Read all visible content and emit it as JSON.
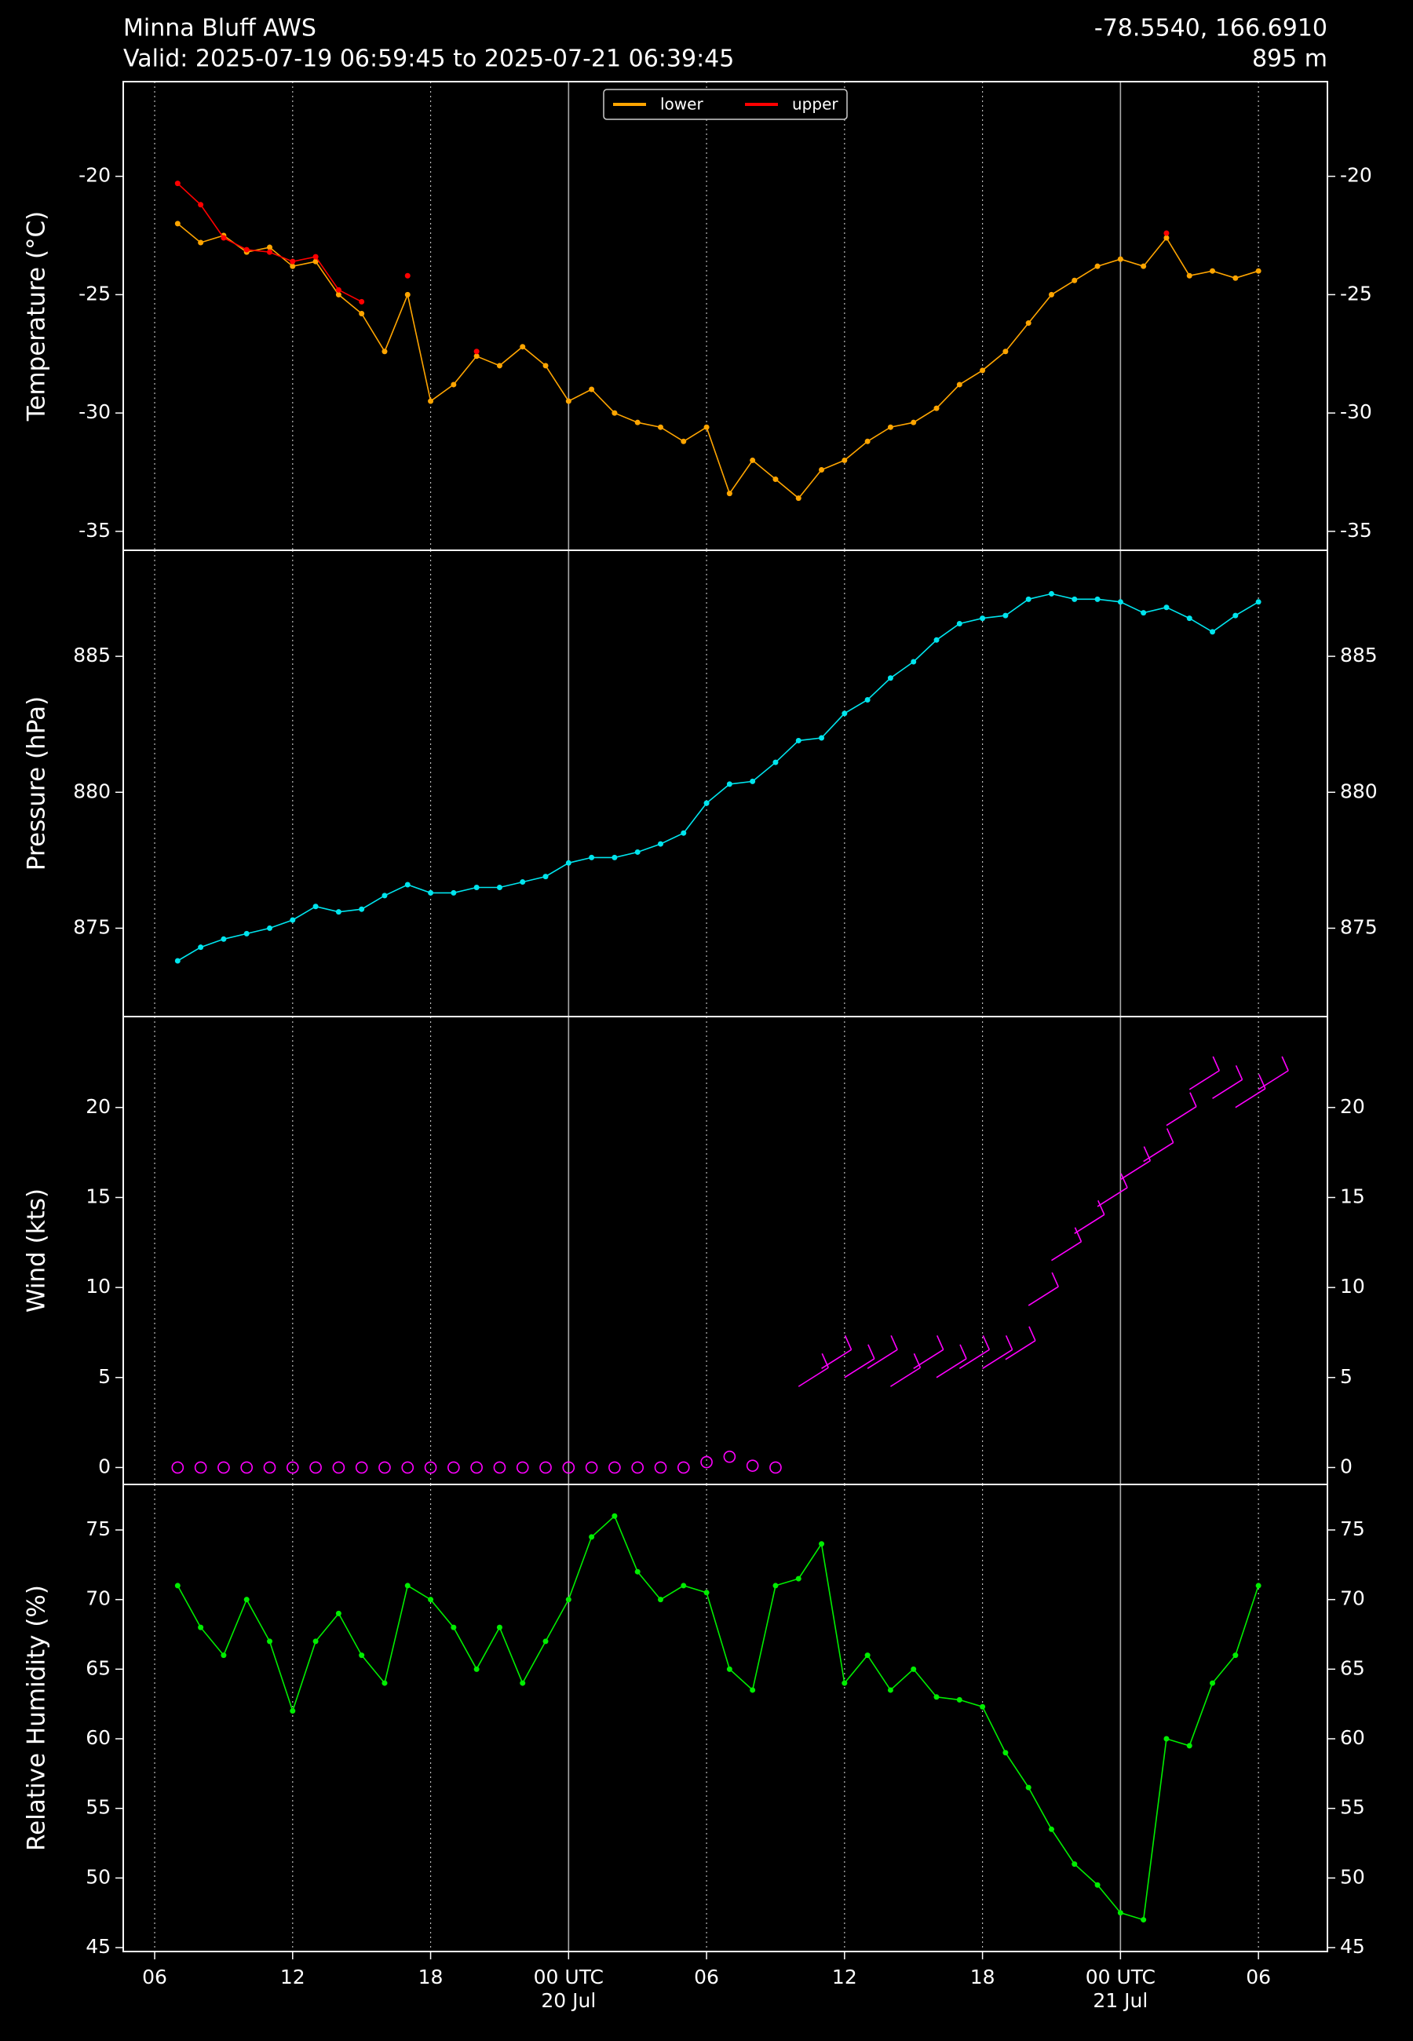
{
  "chart_data": {
    "type": "multi-panel",
    "title": "Minna Bluff AWS",
    "subtitle": "Valid: 2025-07-19 06:59:45 to 2025-07-21 06:39:45",
    "location": "-78.5540, 166.6910",
    "elevation": "895 m",
    "grid": true,
    "x": [
      "2025-07-19T07:00",
      "2025-07-19T08:00",
      "2025-07-19T09:00",
      "2025-07-19T10:00",
      "2025-07-19T11:00",
      "2025-07-19T12:00",
      "2025-07-19T13:00",
      "2025-07-19T14:00",
      "2025-07-19T15:00",
      "2025-07-19T16:00",
      "2025-07-19T17:00",
      "2025-07-19T18:00",
      "2025-07-19T19:00",
      "2025-07-19T20:00",
      "2025-07-19T21:00",
      "2025-07-19T22:00",
      "2025-07-19T23:00",
      "2025-07-20T00:00",
      "2025-07-20T01:00",
      "2025-07-20T02:00",
      "2025-07-20T03:00",
      "2025-07-20T04:00",
      "2025-07-20T05:00",
      "2025-07-20T06:00",
      "2025-07-20T07:00",
      "2025-07-20T08:00",
      "2025-07-20T09:00",
      "2025-07-20T10:00",
      "2025-07-20T11:00",
      "2025-07-20T12:00",
      "2025-07-20T13:00",
      "2025-07-20T14:00",
      "2025-07-20T15:00",
      "2025-07-20T16:00",
      "2025-07-20T17:00",
      "2025-07-20T18:00",
      "2025-07-20T19:00",
      "2025-07-20T20:00",
      "2025-07-20T21:00",
      "2025-07-20T22:00",
      "2025-07-20T23:00",
      "2025-07-21T00:00",
      "2025-07-21T01:00",
      "2025-07-21T02:00",
      "2025-07-21T03:00",
      "2025-07-21T04:00",
      "2025-07-21T05:00",
      "2025-07-21T06:00"
    ],
    "xlim": [
      "2025-07-19T04:38",
      "2025-07-21T09:00"
    ],
    "xticks": [
      {
        "value": "2025-07-19T06:00",
        "label": "06"
      },
      {
        "value": "2025-07-19T12:00",
        "label": "12"
      },
      {
        "value": "2025-07-19T18:00",
        "label": "18"
      },
      {
        "value": "2025-07-20T00:00",
        "label": "00 UTC",
        "date": "20 Jul"
      },
      {
        "value": "2025-07-20T06:00",
        "label": "06"
      },
      {
        "value": "2025-07-20T12:00",
        "label": "12"
      },
      {
        "value": "2025-07-20T18:00",
        "label": "18"
      },
      {
        "value": "2025-07-21T00:00",
        "label": "00 UTC",
        "date": "21 Jul"
      },
      {
        "value": "2025-07-21T06:00",
        "label": "06"
      }
    ],
    "panels": [
      {
        "type": "line",
        "ylabel": "Temperature (°C)",
        "ylim": [
          -35.8,
          -16
        ],
        "yticks": [
          -35,
          -30,
          -25,
          -20
        ],
        "legend": "upper center",
        "series": [
          {
            "name": "lower",
            "color": "#ffa500",
            "values": [
              -22.0,
              -22.8,
              -22.5,
              -23.2,
              -23.0,
              -23.8,
              -23.6,
              -25.0,
              -25.8,
              -27.4,
              -25.0,
              -29.5,
              -28.8,
              -27.6,
              -28.0,
              -27.2,
              -28.0,
              -29.5,
              -29.0,
              -30.0,
              -30.4,
              -30.6,
              -31.2,
              -30.6,
              -33.4,
              -32.0,
              -32.8,
              -33.6,
              -32.4,
              -32.0,
              -31.2,
              -30.6,
              -30.4,
              -29.8,
              -28.8,
              -28.2,
              -27.4,
              -26.2,
              -25.0,
              -24.4,
              -23.8,
              -23.5,
              -23.8,
              -22.6,
              -24.2,
              -24.0,
              -24.3,
              -24.0
            ]
          },
          {
            "name": "upper",
            "color": "#ff0000",
            "values": [
              -20.3,
              -21.2,
              -22.6,
              -23.1,
              -23.2,
              -23.6,
              -23.4,
              -24.8,
              -25.3,
              null,
              -24.2,
              null,
              null,
              -27.4,
              null,
              null,
              null,
              null,
              null,
              null,
              null,
              null,
              null,
              null,
              null,
              null,
              null,
              null,
              null,
              null,
              null,
              null,
              null,
              null,
              null,
              null,
              null,
              null,
              null,
              null,
              null,
              null,
              null,
              -22.4,
              null,
              null,
              null,
              null
            ]
          }
        ]
      },
      {
        "type": "line",
        "ylabel": "Pressure (hPa)",
        "ylim": [
          871.75,
          888.9
        ],
        "yticks": [
          875,
          880,
          885
        ],
        "series": [
          {
            "name": "pressure",
            "color": "#00e5ee",
            "values": [
              873.8,
              874.3,
              874.6,
              874.8,
              875.0,
              875.3,
              875.8,
              875.6,
              875.7,
              876.2,
              876.6,
              876.3,
              876.3,
              876.5,
              876.5,
              876.7,
              876.9,
              877.4,
              877.6,
              877.6,
              877.8,
              878.1,
              878.5,
              879.6,
              880.3,
              880.4,
              881.1,
              881.9,
              882.0,
              882.9,
              883.4,
              884.2,
              884.8,
              885.6,
              886.2,
              886.4,
              886.5,
              887.1,
              887.3,
              887.1,
              887.1,
              887.0,
              886.6,
              886.8,
              886.4,
              885.9,
              886.5,
              887.0
            ]
          }
        ]
      },
      {
        "type": "barb",
        "ylabel": "Wind (kts)",
        "ylim": [
          -0.94,
          25.05
        ],
        "yticks": [
          0,
          5,
          10,
          15,
          20
        ],
        "series": [
          {
            "name": "wind",
            "color": "#ff00ff",
            "values": [
              0,
              0,
              0,
              0,
              0,
              0,
              0,
              0,
              0,
              0,
              0,
              0,
              0,
              0,
              0,
              0,
              0,
              0,
              0,
              0,
              0,
              0,
              0,
              0.3,
              0.6,
              0.1,
              0,
              4.5,
              5.5,
              5,
              5.5,
              4.5,
              5.5,
              5,
              5.5,
              5.5,
              6,
              9,
              11.5,
              13,
              14.5,
              16,
              17,
              19,
              21,
              20.5,
              20,
              21
            ]
          }
        ]
      },
      {
        "type": "line",
        "ylabel": "Relative Humidity (%)",
        "ylim": [
          44.72,
          78.27
        ],
        "yticks": [
          45,
          50,
          55,
          60,
          65,
          70,
          75
        ],
        "series": [
          {
            "name": "humidity",
            "color": "#00ee00",
            "values": [
              71,
              68,
              66,
              70,
              67,
              62,
              67,
              69,
              66,
              64,
              71,
              70,
              68,
              65,
              68,
              64,
              67,
              70,
              74.5,
              76,
              72,
              70,
              71,
              70.5,
              65,
              63.5,
              71,
              71.5,
              74,
              64,
              66,
              63.5,
              65,
              63,
              62.8,
              62.3,
              59,
              56.5,
              53.5,
              51,
              49.5,
              47.5,
              47,
              60,
              59.5,
              64,
              66,
              71
            ]
          }
        ]
      }
    ]
  }
}
